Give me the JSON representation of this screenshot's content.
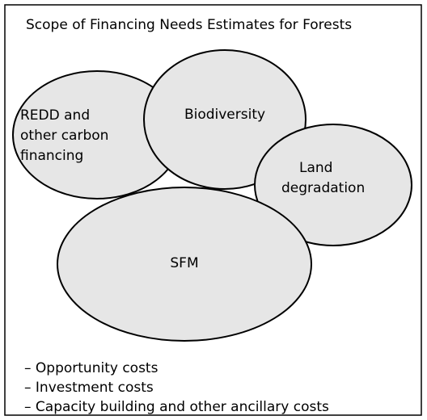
{
  "title": "Scope of Financing Needs Estimates for Forests",
  "nodes": [
    {
      "lines": [
        "REDD and",
        "other carbon",
        "financing"
      ]
    },
    {
      "lines": [
        "Biodiversity"
      ]
    },
    {
      "lines": [
        "Land",
        "degradation"
      ]
    },
    {
      "lines": [
        "SFM"
      ]
    }
  ],
  "list": [
    "– Opportunity costs",
    "– Investment costs",
    "– Capacity building and other ancillary costs"
  ]
}
